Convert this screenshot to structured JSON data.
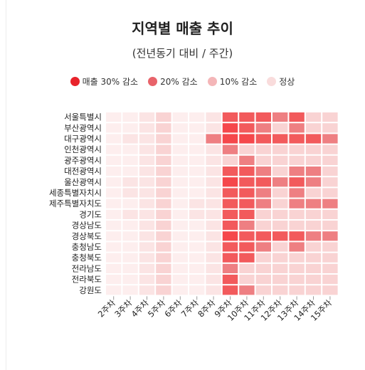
{
  "chart_data": {
    "type": "heatmap",
    "title": "지역별 매출 추이",
    "subtitle": "(전년동기 대비 / 주간)",
    "legend": [
      {
        "label": "매출 30% 감소",
        "color": "#e8232b"
      },
      {
        "label": "20% 감소",
        "color": "#e8636a"
      },
      {
        "label": "10% 감소",
        "color": "#f4b6b8"
      },
      {
        "label": "정상",
        "color": "#f9dcdc"
      }
    ],
    "x_categories": [
      "2주차",
      "3주차",
      "4주차",
      "5주차",
      "6주차",
      "7주차",
      "8주차",
      "9주차",
      "10주차",
      "11주차",
      "12주차",
      "13주차",
      "14주차",
      "15주차"
    ],
    "y_categories": [
      "서울특별시",
      "부산광역시",
      "대구광역시",
      "인천광역시",
      "광주광역시",
      "대전광역시",
      "울산광역시",
      "세종특별자치시",
      "제주특별자치도",
      "경기도",
      "경상남도",
      "경상북도",
      "충청남도",
      "충청북도",
      "전라남도",
      "전라북도",
      "강원도"
    ],
    "level_colors": [
      "#fdeeee",
      "#fbe4e4",
      "#f9d3d3",
      "#ee7f82",
      "#f25a5c",
      "#f5474b"
    ],
    "values": [
      [
        0,
        0,
        1,
        2,
        0,
        0,
        1,
        4,
        4,
        4,
        3,
        4,
        2,
        2
      ],
      [
        0,
        0,
        1,
        2,
        0,
        0,
        1,
        5,
        4,
        3,
        2,
        3,
        2,
        2
      ],
      [
        0,
        1,
        1,
        2,
        0,
        0,
        3,
        5,
        5,
        4,
        4,
        4,
        4,
        3
      ],
      [
        0,
        0,
        1,
        2,
        0,
        0,
        1,
        3,
        2,
        2,
        2,
        2,
        2,
        2
      ],
      [
        0,
        0,
        1,
        2,
        0,
        0,
        1,
        2,
        3,
        2,
        2,
        2,
        2,
        2
      ],
      [
        0,
        0,
        1,
        2,
        0,
        0,
        1,
        4,
        4,
        3,
        2,
        3,
        3,
        2
      ],
      [
        0,
        1,
        1,
        2,
        0,
        0,
        1,
        5,
        4,
        4,
        3,
        4,
        3,
        2
      ],
      [
        0,
        1,
        1,
        2,
        0,
        0,
        1,
        4,
        4,
        3,
        2,
        3,
        2,
        2
      ],
      [
        0,
        0,
        1,
        2,
        0,
        1,
        1,
        4,
        4,
        3,
        2,
        3,
        3,
        3
      ],
      [
        0,
        1,
        1,
        2,
        0,
        1,
        1,
        4,
        4,
        2,
        2,
        2,
        2,
        2
      ],
      [
        0,
        0,
        1,
        2,
        0,
        0,
        1,
        4,
        3,
        2,
        2,
        2,
        2,
        2
      ],
      [
        0,
        0,
        1,
        2,
        0,
        0,
        1,
        5,
        4,
        4,
        4,
        4,
        3,
        3
      ],
      [
        0,
        0,
        1,
        2,
        0,
        0,
        1,
        4,
        4,
        3,
        2,
        3,
        2,
        2
      ],
      [
        0,
        0,
        1,
        2,
        0,
        0,
        1,
        4,
        4,
        2,
        2,
        2,
        2,
        2
      ],
      [
        0,
        0,
        1,
        2,
        0,
        0,
        1,
        3,
        2,
        2,
        2,
        2,
        2,
        2
      ],
      [
        0,
        0,
        1,
        2,
        0,
        0,
        1,
        4,
        2,
        2,
        2,
        2,
        2,
        2
      ],
      [
        0,
        0,
        1,
        2,
        0,
        0,
        1,
        4,
        3,
        2,
        2,
        2,
        2,
        2
      ]
    ]
  }
}
